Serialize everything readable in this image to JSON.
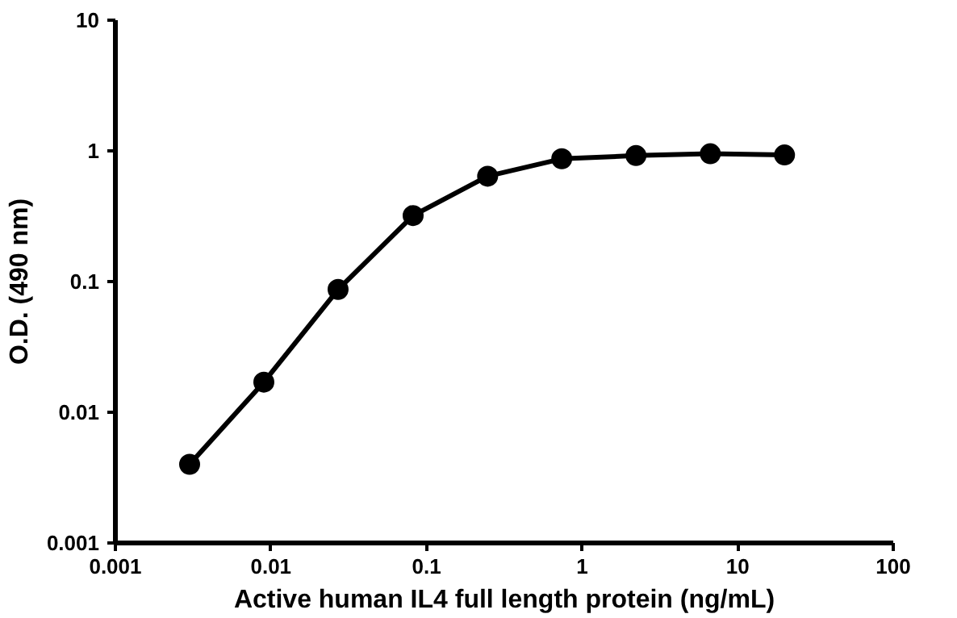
{
  "chart_data": {
    "type": "line",
    "xlabel": "Active human IL4 full length protein (ng/mL)",
    "ylabel": "O.D. (490 nm)",
    "x": [
      0.003,
      0.009,
      0.027,
      0.082,
      0.247,
      0.74,
      2.22,
      6.67,
      20
    ],
    "series": [
      {
        "color": "#000000",
        "values": [
          0.004,
          0.017,
          0.087,
          0.32,
          0.64,
          0.87,
          0.92,
          0.95,
          0.93
        ]
      }
    ],
    "log": "xy",
    "xlim": [
      0.001,
      100
    ],
    "ylim": [
      0.001,
      10
    ],
    "xticks": [
      0.001,
      0.01,
      0.1,
      1,
      10,
      100
    ],
    "yticks": [
      0.001,
      0.01,
      0.1,
      1,
      10
    ],
    "grid": false,
    "marker": "circle",
    "line_style": "solid"
  }
}
